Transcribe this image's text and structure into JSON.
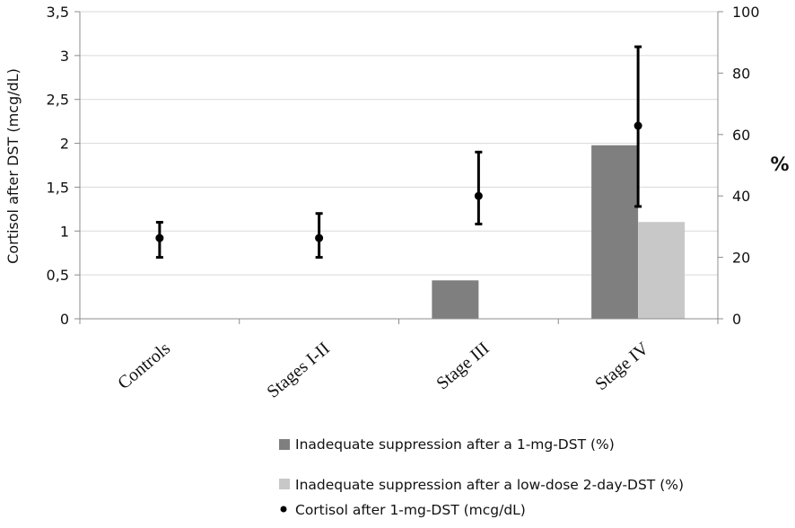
{
  "chart_data": {
    "type": "bar",
    "categories": [
      "Controls",
      "Stages I-II",
      "Stage III",
      "Stage IV"
    ],
    "left_axis": {
      "label": "Cortisol after DST (mcg/dL)",
      "ylim": [
        0,
        3.5
      ],
      "ticks": [
        "0",
        "0,5",
        "1",
        "1,5",
        "2",
        "2,5",
        "3",
        "3,5"
      ]
    },
    "right_axis": {
      "label": "%",
      "ylim": [
        0,
        100
      ],
      "ticks": [
        "0",
        "20",
        "40",
        "60",
        "80",
        "100"
      ]
    },
    "grid": true,
    "legend_position": "bottom-right",
    "series": [
      {
        "name": "Inadequate suppression after a 1-mg-DST (%)",
        "kind": "bar",
        "axis": "right",
        "color": "#7f7f7f",
        "values": [
          0,
          0,
          12.5,
          56.5
        ]
      },
      {
        "name": "Inadequate suppression after a low-dose 2-day-DST (%)",
        "kind": "bar",
        "axis": "right",
        "color": "#c8c8c8",
        "values": [
          0,
          0,
          0,
          31.5
        ]
      },
      {
        "name": "Cortisol after 1-mg-DST (mcg/dL)",
        "kind": "point-errorbar",
        "axis": "left",
        "color": "#000000",
        "values": [
          0.92,
          0.92,
          1.4,
          2.2
        ],
        "error_low": [
          0.7,
          0.7,
          1.08,
          1.28
        ],
        "error_high": [
          1.1,
          1.2,
          1.9,
          3.1
        ]
      }
    ]
  }
}
